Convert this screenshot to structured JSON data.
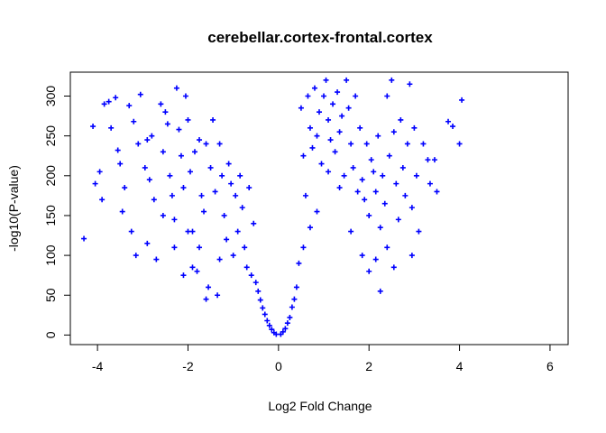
{
  "chart_data": {
    "type": "scatter",
    "title": "cerebellar.cortex-frontal.cortex",
    "xlabel": "Log2 Fold Change",
    "ylabel": "-log10(P-value)",
    "xlim": [
      -4.6,
      6.4
    ],
    "ylim": [
      -12,
      330
    ],
    "x_ticks": [
      -4,
      -2,
      0,
      2,
      4,
      6
    ],
    "y_ticks": [
      0,
      50,
      100,
      150,
      200,
      250,
      300
    ],
    "marker": "+",
    "colors": {
      "points": "#0000ff",
      "axes": "#000000"
    },
    "series": [
      {
        "points": [
          [
            -4.3,
            121
          ],
          [
            -4.05,
            190
          ],
          [
            -4.1,
            262
          ],
          [
            -3.95,
            205
          ],
          [
            -3.9,
            170
          ],
          [
            -3.85,
            290
          ],
          [
            -3.75,
            293
          ],
          [
            -3.6,
            298
          ],
          [
            -3.55,
            232
          ],
          [
            -3.5,
            215
          ],
          [
            -3.45,
            155
          ],
          [
            -3.3,
            288
          ],
          [
            -3.2,
            268
          ],
          [
            -3.1,
            240
          ],
          [
            -3.05,
            302
          ],
          [
            -2.95,
            210
          ],
          [
            -2.9,
            245
          ],
          [
            -2.85,
            195
          ],
          [
            -2.8,
            250
          ],
          [
            -2.75,
            170
          ],
          [
            -2.7,
            95
          ],
          [
            -2.6,
            290
          ],
          [
            -2.55,
            230
          ],
          [
            -2.5,
            280
          ],
          [
            -2.45,
            265
          ],
          [
            -2.4,
            200
          ],
          [
            -2.35,
            175
          ],
          [
            -2.3,
            145
          ],
          [
            -2.25,
            310
          ],
          [
            -2.2,
            258
          ],
          [
            -2.15,
            225
          ],
          [
            -2.1,
            185
          ],
          [
            -2.05,
            300
          ],
          [
            -2.0,
            270
          ],
          [
            -1.95,
            205
          ],
          [
            -1.9,
            130
          ],
          [
            -1.85,
            230
          ],
          [
            -1.75,
            245
          ],
          [
            -1.7,
            175
          ],
          [
            -1.65,
            155
          ],
          [
            -1.6,
            240
          ],
          [
            -1.5,
            210
          ],
          [
            -1.45,
            270
          ],
          [
            -1.4,
            180
          ],
          [
            -1.3,
            240
          ],
          [
            -1.25,
            200
          ],
          [
            -1.2,
            150
          ],
          [
            -1.1,
            215
          ],
          [
            -1.05,
            190
          ],
          [
            -0.95,
            175
          ],
          [
            -0.9,
            130
          ],
          [
            -1.0,
            100
          ],
          [
            -0.8,
            160
          ],
          [
            -0.75,
            110
          ],
          [
            -0.7,
            85
          ],
          [
            -0.6,
            75
          ],
          [
            -1.8,
            80
          ],
          [
            -1.55,
            60
          ],
          [
            -1.35,
            50
          ],
          [
            -1.6,
            45
          ],
          [
            -2.1,
            75
          ],
          [
            -2.3,
            110
          ],
          [
            -2.9,
            115
          ],
          [
            -3.15,
            100
          ],
          [
            -3.4,
            185
          ],
          [
            -3.7,
            260
          ],
          [
            -3.25,
            130
          ],
          [
            -2.0,
            130
          ],
          [
            -1.9,
            85
          ],
          [
            -1.75,
            110
          ],
          [
            -0.85,
            200
          ],
          [
            -0.65,
            185
          ],
          [
            -0.55,
            140
          ],
          [
            -1.15,
            120
          ],
          [
            -1.3,
            95
          ],
          [
            -2.55,
            150
          ],
          [
            0.5,
            285
          ],
          [
            0.55,
            225
          ],
          [
            0.6,
            175
          ],
          [
            0.65,
            300
          ],
          [
            0.7,
            260
          ],
          [
            0.75,
            235
          ],
          [
            0.8,
            310
          ],
          [
            0.85,
            250
          ],
          [
            0.9,
            280
          ],
          [
            0.95,
            215
          ],
          [
            1.0,
            300
          ],
          [
            1.05,
            320
          ],
          [
            1.1,
            270
          ],
          [
            1.15,
            245
          ],
          [
            1.2,
            290
          ],
          [
            1.25,
            230
          ],
          [
            1.3,
            305
          ],
          [
            1.35,
            255
          ],
          [
            1.4,
            275
          ],
          [
            1.45,
            200
          ],
          [
            1.5,
            320
          ],
          [
            1.55,
            285
          ],
          [
            1.6,
            240
          ],
          [
            1.65,
            210
          ],
          [
            1.7,
            300
          ],
          [
            1.75,
            180
          ],
          [
            1.8,
            260
          ],
          [
            1.85,
            195
          ],
          [
            1.9,
            170
          ],
          [
            1.95,
            240
          ],
          [
            2.0,
            150
          ],
          [
            2.05,
            220
          ],
          [
            2.1,
            205
          ],
          [
            2.15,
            180
          ],
          [
            2.2,
            250
          ],
          [
            2.25,
            135
          ],
          [
            2.3,
            200
          ],
          [
            2.35,
            165
          ],
          [
            2.4,
            300
          ],
          [
            2.45,
            225
          ],
          [
            2.5,
            320
          ],
          [
            2.55,
            255
          ],
          [
            2.6,
            190
          ],
          [
            2.65,
            145
          ],
          [
            2.7,
            270
          ],
          [
            2.75,
            210
          ],
          [
            2.8,
            175
          ],
          [
            2.85,
            240
          ],
          [
            2.9,
            315
          ],
          [
            2.95,
            160
          ],
          [
            3.0,
            260
          ],
          [
            3.05,
            200
          ],
          [
            3.1,
            130
          ],
          [
            3.2,
            240
          ],
          [
            3.3,
            220
          ],
          [
            3.35,
            190
          ],
          [
            3.45,
            220
          ],
          [
            3.5,
            180
          ],
          [
            3.75,
            268
          ],
          [
            3.85,
            262
          ],
          [
            4.0,
            240
          ],
          [
            4.05,
            295
          ],
          [
            2.25,
            55
          ],
          [
            2.0,
            80
          ],
          [
            1.85,
            100
          ],
          [
            1.6,
            130
          ],
          [
            2.4,
            110
          ],
          [
            2.55,
            85
          ],
          [
            2.95,
            100
          ],
          [
            2.15,
            95
          ],
          [
            1.35,
            185
          ],
          [
            1.1,
            205
          ],
          [
            0.85,
            155
          ],
          [
            0.7,
            135
          ],
          [
            0.55,
            110
          ],
          [
            0.45,
            90
          ],
          [
            0.4,
            60
          ],
          [
            0.35,
            45
          ],
          [
            0.3,
            35
          ],
          [
            0.25,
            22
          ],
          [
            0.2,
            15
          ],
          [
            0.15,
            8
          ],
          [
            0.1,
            4
          ],
          [
            0.05,
            1
          ],
          [
            -0.05,
            1
          ],
          [
            -0.1,
            3
          ],
          [
            -0.15,
            7
          ],
          [
            -0.2,
            12
          ],
          [
            -0.25,
            18
          ],
          [
            -0.3,
            26
          ],
          [
            -0.35,
            34
          ],
          [
            -0.4,
            44
          ],
          [
            -0.45,
            55
          ],
          [
            -0.5,
            66
          ]
        ]
      }
    ]
  }
}
